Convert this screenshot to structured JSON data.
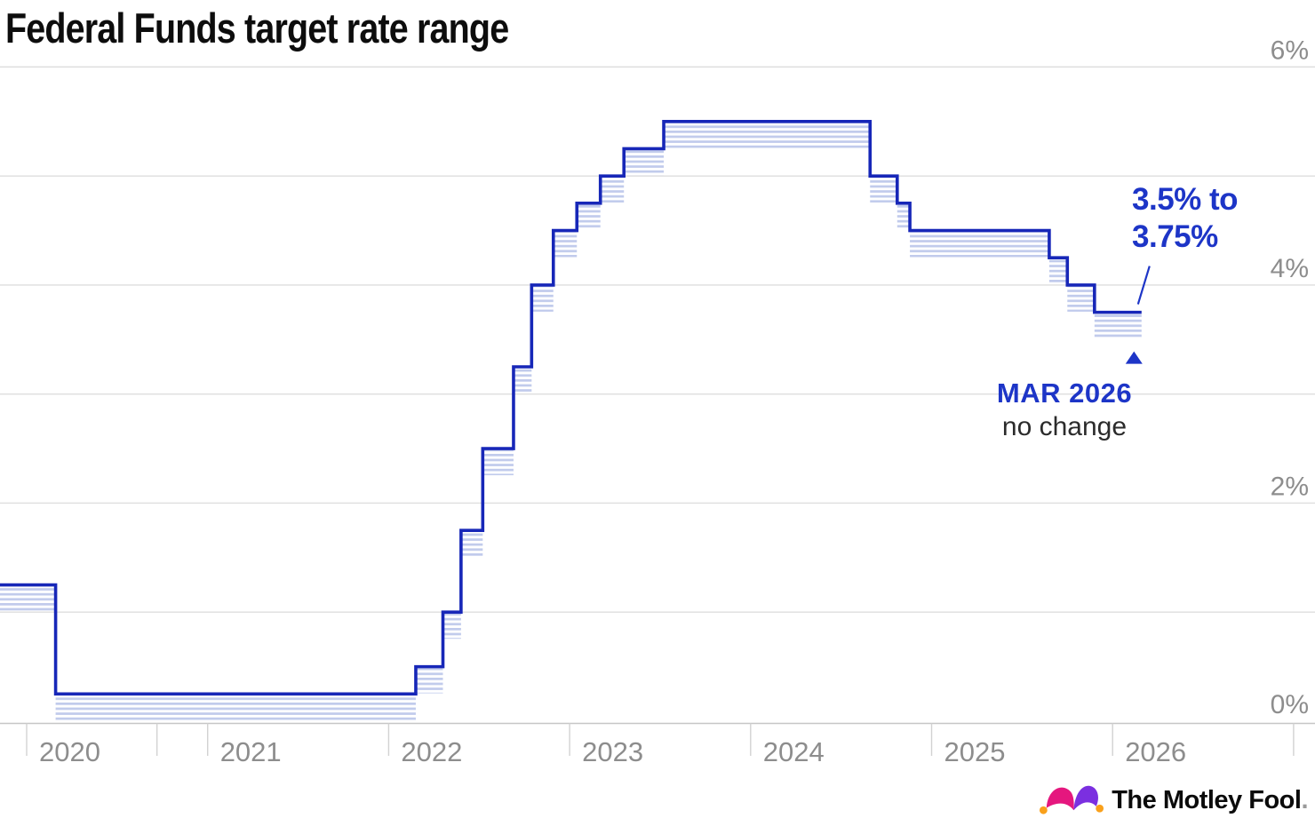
{
  "title": "Federal Funds target rate range",
  "colors": {
    "line_blue": "#1727b8",
    "accent_blue": "#1d35c7",
    "hatch_blue": "#c1cbec",
    "gridline": "#dedede",
    "axis_line": "#c6c6c6",
    "tick": "#d2d2d2",
    "axis_text": "#8d8d8d",
    "change_text": "#2b2b2b",
    "logo_pink": "#e5177e",
    "logo_purple": "#7b2fe0",
    "logo_orange": "#f9a01b"
  },
  "chart_data": {
    "type": "line",
    "style": "step-range (upper bound line with 0.25%-wide hatched band below)",
    "title": "Federal Funds target rate range",
    "xlabel": "",
    "ylabel": "",
    "ylim": [
      0,
      6
    ],
    "xlim": [
      2019.85,
      2027.12
    ],
    "grid": "horizontal gridlines at every 1% from 0% to 6%",
    "gridline_percents": [
      1,
      2,
      3,
      4,
      5,
      6
    ],
    "y_tick_labels": [
      {
        "pct": 0,
        "label": "0%"
      },
      {
        "pct": 2,
        "label": "2%"
      },
      {
        "pct": 4,
        "label": "4%"
      },
      {
        "pct": 6,
        "label": "6%"
      }
    ],
    "x_ticks": [
      2020,
      2020.72,
      2021,
      2022,
      2023,
      2024,
      2025,
      2026,
      2027
    ],
    "x_tick_labels": [
      {
        "year": 2020,
        "label": "2020"
      },
      {
        "year": 2021,
        "label": "2021"
      },
      {
        "year": 2022,
        "label": "2022"
      },
      {
        "year": 2023,
        "label": "2023"
      },
      {
        "year": 2024,
        "label": "2024"
      },
      {
        "year": 2025,
        "label": "2025"
      },
      {
        "year": 2026,
        "label": "2026"
      }
    ],
    "series": [
      {
        "date_label": "start (early 2020)",
        "x0": 2019.85,
        "x1": 2020.16,
        "lower": 1.0,
        "upper": 1.25,
        "range": "1.00% to 1.25%"
      },
      {
        "date_label": "Mar 2020",
        "x0": 2020.16,
        "x1": 2022.15,
        "lower": 0.0,
        "upper": 0.25,
        "range": "0% to 0.25%"
      },
      {
        "date_label": "Mar 2022",
        "x0": 2022.15,
        "x1": 2022.3,
        "lower": 0.25,
        "upper": 0.5,
        "range": "0.25% to 0.50%"
      },
      {
        "date_label": "May 2022",
        "x0": 2022.3,
        "x1": 2022.4,
        "lower": 0.75,
        "upper": 1.0,
        "range": "0.75% to 1.00%"
      },
      {
        "date_label": "Jun 2022",
        "x0": 2022.4,
        "x1": 2022.52,
        "lower": 1.5,
        "upper": 1.75,
        "range": "1.50% to 1.75%"
      },
      {
        "date_label": "Jul 2022",
        "x0": 2022.52,
        "x1": 2022.69,
        "lower": 2.25,
        "upper": 2.5,
        "range": "2.25% to 2.50%"
      },
      {
        "date_label": "Sep 2022",
        "x0": 2022.69,
        "x1": 2022.79,
        "lower": 3.0,
        "upper": 3.25,
        "range": "3.00% to 3.25%"
      },
      {
        "date_label": "Nov 2022",
        "x0": 2022.79,
        "x1": 2022.91,
        "lower": 3.75,
        "upper": 4.0,
        "range": "3.75% to 4.00%"
      },
      {
        "date_label": "Dec 2022",
        "x0": 2022.91,
        "x1": 2023.04,
        "lower": 4.25,
        "upper": 4.5,
        "range": "4.25% to 4.50%"
      },
      {
        "date_label": "Feb 2023",
        "x0": 2023.04,
        "x1": 2023.17,
        "lower": 4.5,
        "upper": 4.75,
        "range": "4.50% to 4.75%"
      },
      {
        "date_label": "Mar 2023",
        "x0": 2023.17,
        "x1": 2023.3,
        "lower": 4.75,
        "upper": 5.0,
        "range": "4.75% to 5.00%"
      },
      {
        "date_label": "May 2023",
        "x0": 2023.3,
        "x1": 2023.52,
        "lower": 5.0,
        "upper": 5.25,
        "range": "5.00% to 5.25%"
      },
      {
        "date_label": "Jul 2023",
        "x0": 2023.52,
        "x1": 2024.66,
        "lower": 5.25,
        "upper": 5.5,
        "range": "5.25% to 5.50%"
      },
      {
        "date_label": "Sep 2024",
        "x0": 2024.66,
        "x1": 2024.81,
        "lower": 4.75,
        "upper": 5.0,
        "range": "4.75% to 5.00%"
      },
      {
        "date_label": "Nov 2024",
        "x0": 2024.81,
        "x1": 2024.88,
        "lower": 4.5,
        "upper": 4.75,
        "range": "4.50% to 4.75%"
      },
      {
        "date_label": "Dec 2024",
        "x0": 2024.88,
        "x1": 2025.65,
        "lower": 4.25,
        "upper": 4.5,
        "range": "4.25% to 4.50%"
      },
      {
        "date_label": "Sep 2025",
        "x0": 2025.65,
        "x1": 2025.75,
        "lower": 4.0,
        "upper": 4.25,
        "range": "4.00% to 4.25%"
      },
      {
        "date_label": "Oct 2025",
        "x0": 2025.75,
        "x1": 2025.9,
        "lower": 3.75,
        "upper": 4.0,
        "range": "3.75% to 4.00%"
      },
      {
        "date_label": "Dec 2025 (held through Mar 2026)",
        "x0": 2025.9,
        "x1": 2026.16,
        "lower": 3.5,
        "upper": 3.75,
        "range": "3.50% to 3.75%"
      }
    ],
    "legend": "none",
    "annotation": {
      "range_line1": "3.5% to",
      "range_line2": "3.75%",
      "date_label": "MAR 2026",
      "change_label": "no change",
      "marker": "solid blue triangle pointing up at the final step"
    }
  },
  "footer": {
    "brand": "The Motley Fool",
    "period": "."
  }
}
